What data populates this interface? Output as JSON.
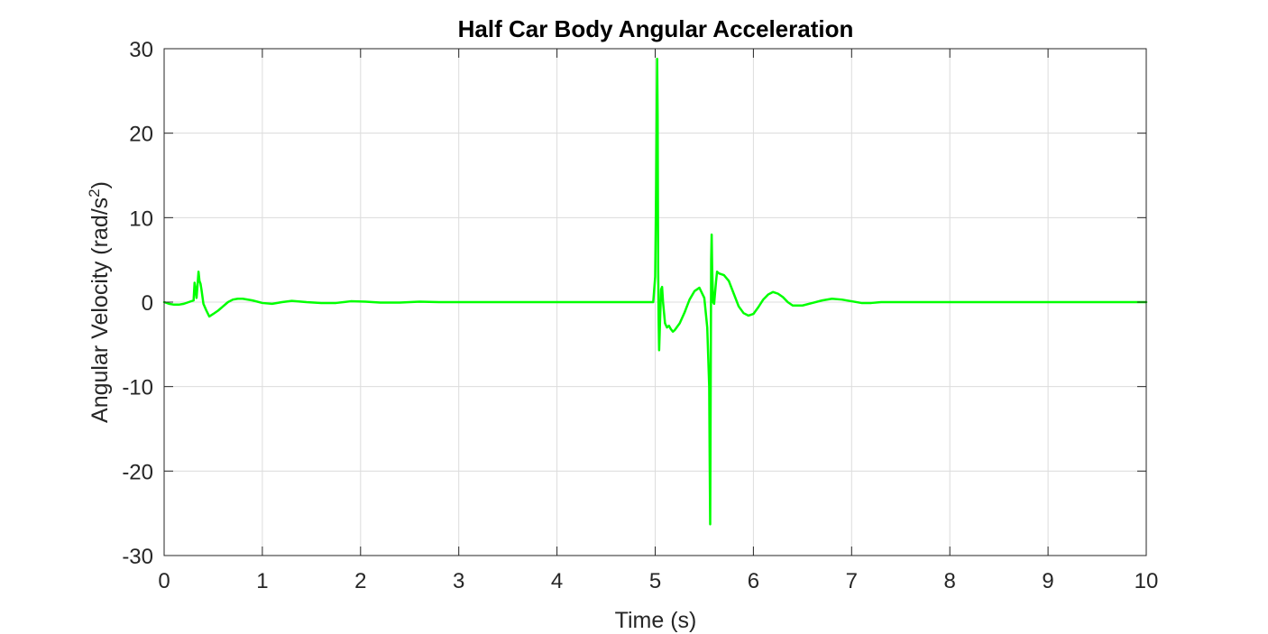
{
  "chart_data": {
    "type": "line",
    "title": "Half Car Body Angular Acceleration",
    "xlabel": "Time (s)",
    "ylabel": "Angular Velocity (rad/s",
    "ylabel_sup": "2",
    "ylabel_end": ")",
    "xlim": [
      0,
      10
    ],
    "ylim": [
      -30,
      30
    ],
    "xticks": [
      "0",
      "1",
      "2",
      "3",
      "4",
      "5",
      "6",
      "7",
      "8",
      "9",
      "10"
    ],
    "yticks": [
      "30",
      "20",
      "10",
      "0",
      "-10",
      "-20",
      "-30"
    ],
    "grid": true,
    "colors": {
      "line": "#00ff00",
      "axis": "#262626",
      "grid": "#dcdcdc"
    },
    "series": [
      {
        "x": [
          0,
          0.05,
          0.1,
          0.15,
          0.2,
          0.25,
          0.3,
          0.31,
          0.32,
          0.33,
          0.34,
          0.35,
          0.36,
          0.37,
          0.38,
          0.4,
          0.43,
          0.46,
          0.5,
          0.55,
          0.6,
          0.65,
          0.7,
          0.75,
          0.8,
          0.9,
          1.0,
          1.1,
          1.2,
          1.3,
          1.45,
          1.6,
          1.75,
          1.9,
          2.05,
          2.2,
          2.4,
          2.6,
          2.8,
          3.0,
          3.5,
          4.0,
          4.5,
          4.98,
          5.0,
          5.01,
          5.02,
          5.025,
          5.03,
          5.035,
          5.04,
          5.05,
          5.06,
          5.07,
          5.08,
          5.1,
          5.12,
          5.14,
          5.16,
          5.18,
          5.2,
          5.25,
          5.3,
          5.35,
          5.4,
          5.45,
          5.5,
          5.53,
          5.55,
          5.555,
          5.56,
          5.565,
          5.57,
          5.575,
          5.58,
          5.59,
          5.6,
          5.62,
          5.63,
          5.65,
          5.7,
          5.75,
          5.8,
          5.85,
          5.9,
          5.95,
          6.0,
          6.05,
          6.1,
          6.15,
          6.2,
          6.25,
          6.3,
          6.35,
          6.4,
          6.5,
          6.6,
          6.7,
          6.8,
          6.9,
          7.0,
          7.1,
          7.2,
          7.3,
          7.5,
          7.7,
          8.0,
          8.5,
          9.0,
          9.5,
          10.0
        ],
        "y": [
          0,
          -0.2,
          -0.3,
          -0.3,
          -0.2,
          0,
          0.2,
          2.3,
          1.5,
          0.5,
          2.0,
          3.6,
          2.5,
          2.2,
          1.5,
          -0.2,
          -1.0,
          -1.7,
          -1.4,
          -1.0,
          -0.5,
          0,
          0.3,
          0.4,
          0.4,
          0.2,
          -0.1,
          -0.2,
          0,
          0.15,
          0,
          -0.1,
          -0.1,
          0.1,
          0.05,
          -0.05,
          -0.05,
          0.05,
          0,
          0,
          0,
          0,
          0,
          0,
          3.0,
          14.0,
          28.8,
          22.0,
          4.0,
          -2.0,
          -5.7,
          -2.0,
          1.5,
          1.8,
          0,
          -2.5,
          -3.0,
          -2.8,
          -3.2,
          -3.5,
          -3.3,
          -2.5,
          -1.2,
          0.3,
          1.3,
          1.7,
          0.5,
          -3.0,
          -10.0,
          -19.0,
          -26.3,
          -10.0,
          5.0,
          8.0,
          4.0,
          0,
          -0.2,
          2.5,
          3.6,
          3.4,
          3.2,
          2.5,
          1.0,
          -0.5,
          -1.3,
          -1.6,
          -1.4,
          -0.6,
          0.3,
          0.9,
          1.2,
          1.0,
          0.6,
          0,
          -0.4,
          -0.4,
          -0.1,
          0.2,
          0.4,
          0.3,
          0.1,
          -0.1,
          -0.1,
          0,
          0,
          0,
          0,
          0,
          0,
          0,
          0
        ]
      }
    ]
  }
}
